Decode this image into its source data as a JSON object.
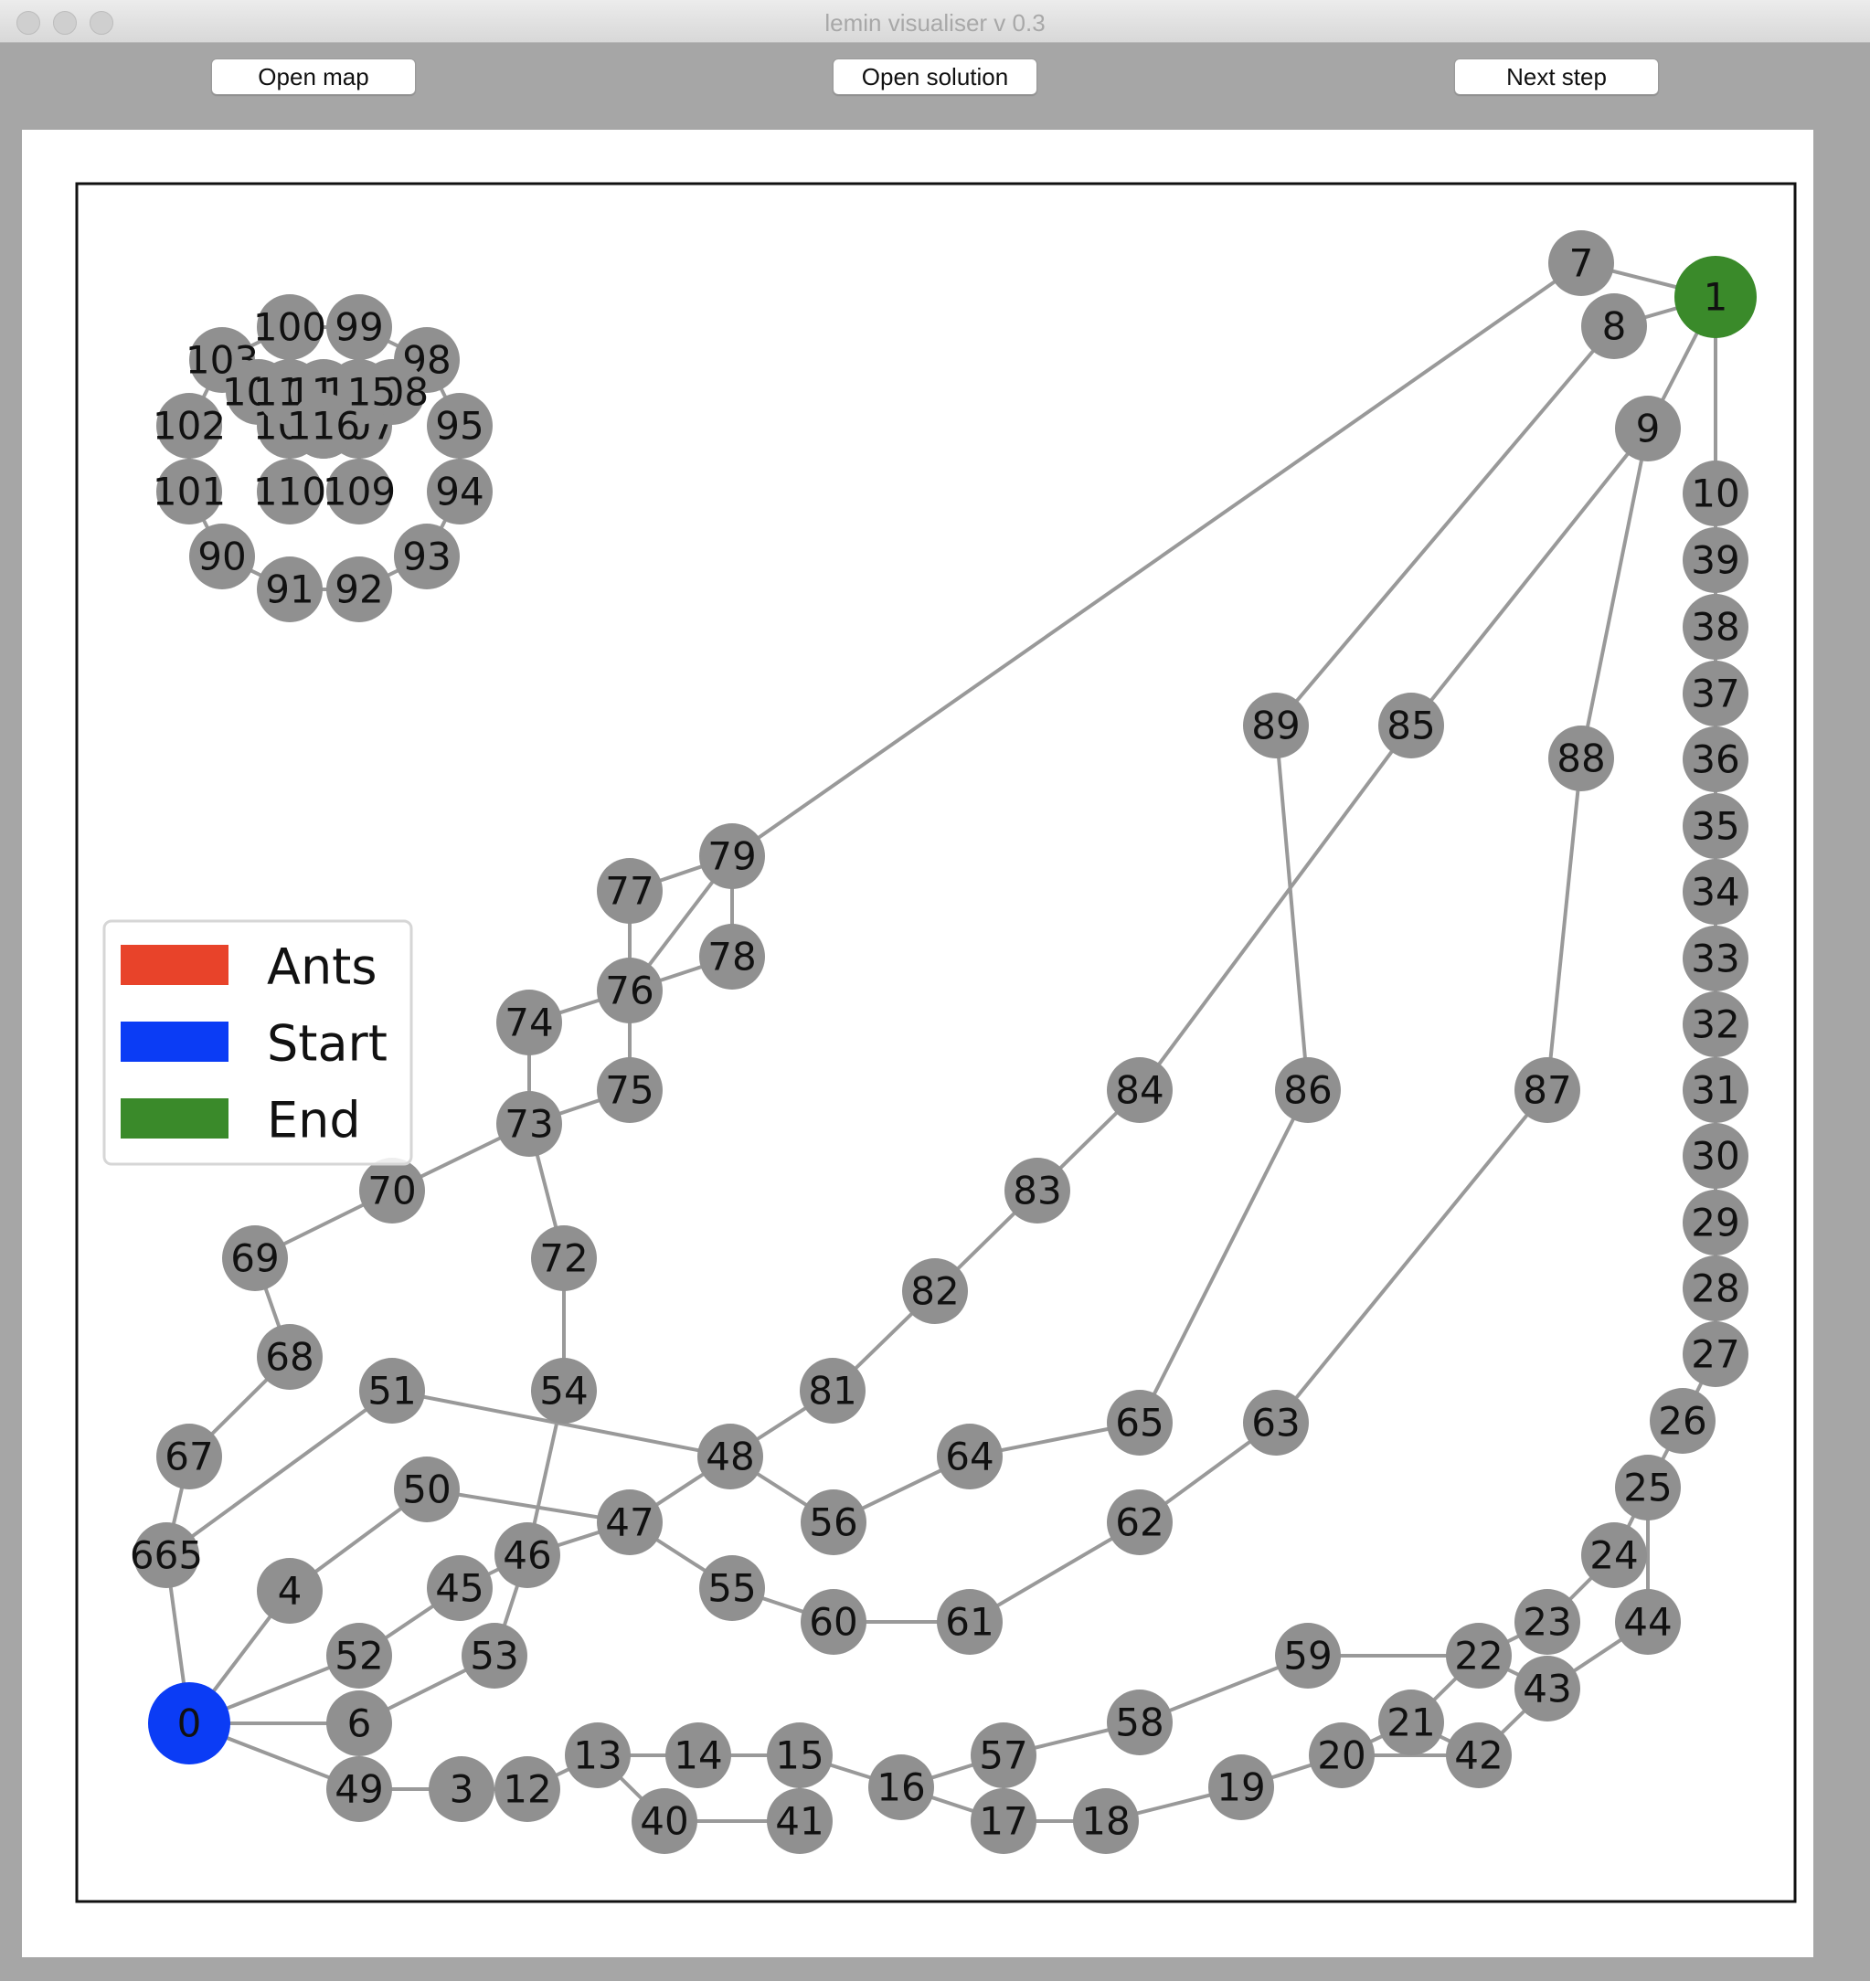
{
  "window": {
    "title": "lemin visualiser v 0.3"
  },
  "toolbar": {
    "open_map_label": "Open map",
    "open_solution_label": "Open solution",
    "next_step_label": "Next step"
  },
  "legend": {
    "items": [
      {
        "label": "Ants",
        "color": "#e8432a"
      },
      {
        "label": "Start",
        "color": "#0b3cf5"
      },
      {
        "label": "End",
        "color": "#3a8a2a"
      }
    ]
  },
  "graph": {
    "start_room": "0",
    "end_room": "1",
    "node_color": "#909090",
    "edge_color": "#999999",
    "nodes": [
      "0",
      "1",
      "3",
      "4",
      "6",
      "7",
      "8",
      "9",
      "10",
      "12",
      "13",
      "14",
      "15",
      "16",
      "17",
      "18",
      "19",
      "20",
      "21",
      "22",
      "23",
      "24",
      "25",
      "26",
      "27",
      "28",
      "29",
      "30",
      "31",
      "32",
      "33",
      "34",
      "35",
      "36",
      "37",
      "38",
      "39",
      "40",
      "41",
      "42",
      "43",
      "44",
      "45",
      "46",
      "47",
      "48",
      "49",
      "50",
      "51",
      "52",
      "53",
      "54",
      "55",
      "56",
      "57",
      "58",
      "59",
      "60",
      "61",
      "62",
      "63",
      "64",
      "65",
      "665",
      "67",
      "68",
      "69",
      "70",
      "72",
      "73",
      "74",
      "75",
      "76",
      "77",
      "78",
      "79",
      "81",
      "82",
      "83",
      "84",
      "85",
      "86",
      "87",
      "88",
      "89",
      "90",
      "91",
      "92",
      "93",
      "94",
      "95",
      "98",
      "99",
      "100",
      "101",
      "102",
      "103",
      "104",
      "105",
      "106",
      "107",
      "108",
      "109",
      "110",
      "113",
      "114",
      "115",
      "116"
    ],
    "links": [
      [
        "0",
        "665"
      ],
      [
        "0",
        "4"
      ],
      [
        "0",
        "52"
      ],
      [
        "0",
        "6"
      ],
      [
        "0",
        "49"
      ],
      [
        "665",
        "67"
      ],
      [
        "665",
        "51"
      ],
      [
        "67",
        "68"
      ],
      [
        "68",
        "69"
      ],
      [
        "69",
        "70"
      ],
      [
        "70",
        "73"
      ],
      [
        "73",
        "74"
      ],
      [
        "73",
        "75"
      ],
      [
        "73",
        "72"
      ],
      [
        "74",
        "76"
      ],
      [
        "75",
        "76"
      ],
      [
        "76",
        "77"
      ],
      [
        "76",
        "78"
      ],
      [
        "76",
        "79"
      ],
      [
        "77",
        "79"
      ],
      [
        "78",
        "79"
      ],
      [
        "79",
        "7"
      ],
      [
        "7",
        "1"
      ],
      [
        "8",
        "1"
      ],
      [
        "9",
        "1"
      ],
      [
        "10",
        "1"
      ],
      [
        "10",
        "39"
      ],
      [
        "39",
        "38"
      ],
      [
        "38",
        "37"
      ],
      [
        "37",
        "36"
      ],
      [
        "36",
        "35"
      ],
      [
        "35",
        "34"
      ],
      [
        "34",
        "33"
      ],
      [
        "33",
        "32"
      ],
      [
        "32",
        "31"
      ],
      [
        "31",
        "30"
      ],
      [
        "30",
        "29"
      ],
      [
        "29",
        "28"
      ],
      [
        "28",
        "27"
      ],
      [
        "27",
        "26"
      ],
      [
        "26",
        "25"
      ],
      [
        "25",
        "24"
      ],
      [
        "25",
        "44"
      ],
      [
        "24",
        "23"
      ],
      [
        "23",
        "22"
      ],
      [
        "22",
        "43"
      ],
      [
        "22",
        "21"
      ],
      [
        "22",
        "59"
      ],
      [
        "21",
        "42"
      ],
      [
        "21",
        "20"
      ],
      [
        "20",
        "42"
      ],
      [
        "42",
        "43"
      ],
      [
        "43",
        "44"
      ],
      [
        "20",
        "19"
      ],
      [
        "19",
        "18"
      ],
      [
        "18",
        "17"
      ],
      [
        "17",
        "16"
      ],
      [
        "16",
        "15"
      ],
      [
        "16",
        "57"
      ],
      [
        "57",
        "17"
      ],
      [
        "57",
        "58"
      ],
      [
        "58",
        "59"
      ],
      [
        "15",
        "14"
      ],
      [
        "14",
        "13"
      ],
      [
        "13",
        "40"
      ],
      [
        "40",
        "41"
      ],
      [
        "41",
        "15"
      ],
      [
        "13",
        "12"
      ],
      [
        "12",
        "3"
      ],
      [
        "3",
        "49"
      ],
      [
        "6",
        "53"
      ],
      [
        "53",
        "46"
      ],
      [
        "52",
        "45"
      ],
      [
        "45",
        "46"
      ],
      [
        "46",
        "47"
      ],
      [
        "46",
        "54"
      ],
      [
        "54",
        "72"
      ],
      [
        "4",
        "50"
      ],
      [
        "50",
        "47"
      ],
      [
        "47",
        "48"
      ],
      [
        "47",
        "55"
      ],
      [
        "55",
        "60"
      ],
      [
        "60",
        "61"
      ],
      [
        "61",
        "62"
      ],
      [
        "62",
        "63"
      ],
      [
        "63",
        "87"
      ],
      [
        "87",
        "88"
      ],
      [
        "88",
        "9"
      ],
      [
        "51",
        "48"
      ],
      [
        "48",
        "56"
      ],
      [
        "48",
        "81"
      ],
      [
        "56",
        "64"
      ],
      [
        "64",
        "65"
      ],
      [
        "65",
        "86"
      ],
      [
        "86",
        "89"
      ],
      [
        "89",
        "8"
      ],
      [
        "81",
        "82"
      ],
      [
        "82",
        "83"
      ],
      [
        "83",
        "84"
      ],
      [
        "84",
        "85"
      ],
      [
        "85",
        "9"
      ],
      [
        "90",
        "91"
      ],
      [
        "91",
        "92"
      ],
      [
        "92",
        "93"
      ],
      [
        "93",
        "94"
      ],
      [
        "94",
        "95"
      ],
      [
        "95",
        "98"
      ],
      [
        "98",
        "99"
      ],
      [
        "99",
        "100"
      ],
      [
        "100",
        "103"
      ],
      [
        "103",
        "102"
      ],
      [
        "102",
        "101"
      ],
      [
        "101",
        "90"
      ],
      [
        "103",
        "104"
      ],
      [
        "104",
        "105"
      ],
      [
        "113",
        "106"
      ],
      [
        "114",
        "107"
      ],
      [
        "108",
        "107"
      ],
      [
        "110",
        "105"
      ],
      [
        "109",
        "107"
      ]
    ]
  }
}
